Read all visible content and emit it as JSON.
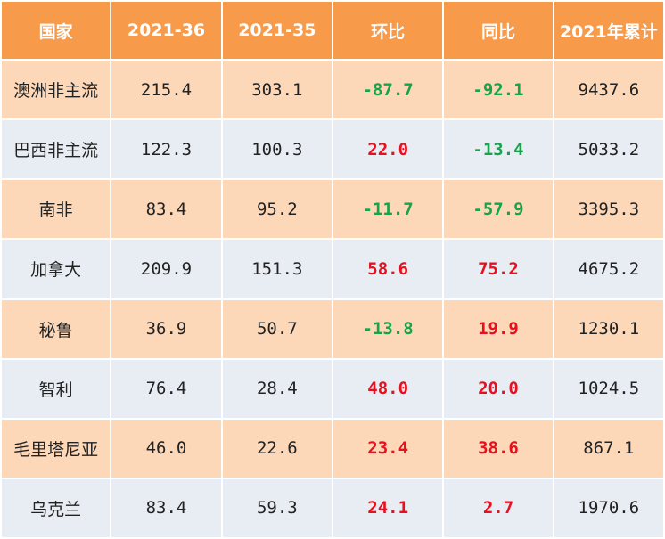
{
  "table": {
    "headers": [
      "国家",
      "2021-36",
      "2021-35",
      "环比",
      "同比",
      "2021年累计"
    ],
    "rows": [
      {
        "country": "澳洲非主流",
        "w36": "215.4",
        "w35": "303.1",
        "mom": "-87.7",
        "yoy": "-92.1",
        "ytd": "9437.6",
        "mom_sign": "neg",
        "yoy_sign": "neg"
      },
      {
        "country": "巴西非主流",
        "w36": "122.3",
        "w35": "100.3",
        "mom": "22.0",
        "yoy": "-13.4",
        "ytd": "5033.2",
        "mom_sign": "pos",
        "yoy_sign": "neg"
      },
      {
        "country": "南非",
        "w36": "83.4",
        "w35": "95.2",
        "mom": "-11.7",
        "yoy": "-57.9",
        "ytd": "3395.3",
        "mom_sign": "neg",
        "yoy_sign": "neg"
      },
      {
        "country": "加拿大",
        "w36": "209.9",
        "w35": "151.3",
        "mom": "58.6",
        "yoy": "75.2",
        "ytd": "4675.2",
        "mom_sign": "pos",
        "yoy_sign": "pos"
      },
      {
        "country": "秘鲁",
        "w36": "36.9",
        "w35": "50.7",
        "mom": "-13.8",
        "yoy": "19.9",
        "ytd": "1230.1",
        "mom_sign": "neg",
        "yoy_sign": "pos"
      },
      {
        "country": "智利",
        "w36": "76.4",
        "w35": "28.4",
        "mom": "48.0",
        "yoy": "20.0",
        "ytd": "1024.5",
        "mom_sign": "pos",
        "yoy_sign": "pos"
      },
      {
        "country": "毛里塔尼亚",
        "w36": "46.0",
        "w35": "22.6",
        "mom": "23.4",
        "yoy": "38.6",
        "ytd": "867.1",
        "mom_sign": "pos",
        "yoy_sign": "pos"
      },
      {
        "country": "乌克兰",
        "w36": "83.4",
        "w35": "59.3",
        "mom": "24.1",
        "yoy": "2.7",
        "ytd": "1970.6",
        "mom_sign": "pos",
        "yoy_sign": "pos"
      }
    ]
  },
  "colors": {
    "header_bg": "#f79b4b",
    "row_odd_bg": "#fdd8b8",
    "row_even_bg": "#e8edf4",
    "positive": "#e8101f",
    "negative": "#17a34a"
  }
}
